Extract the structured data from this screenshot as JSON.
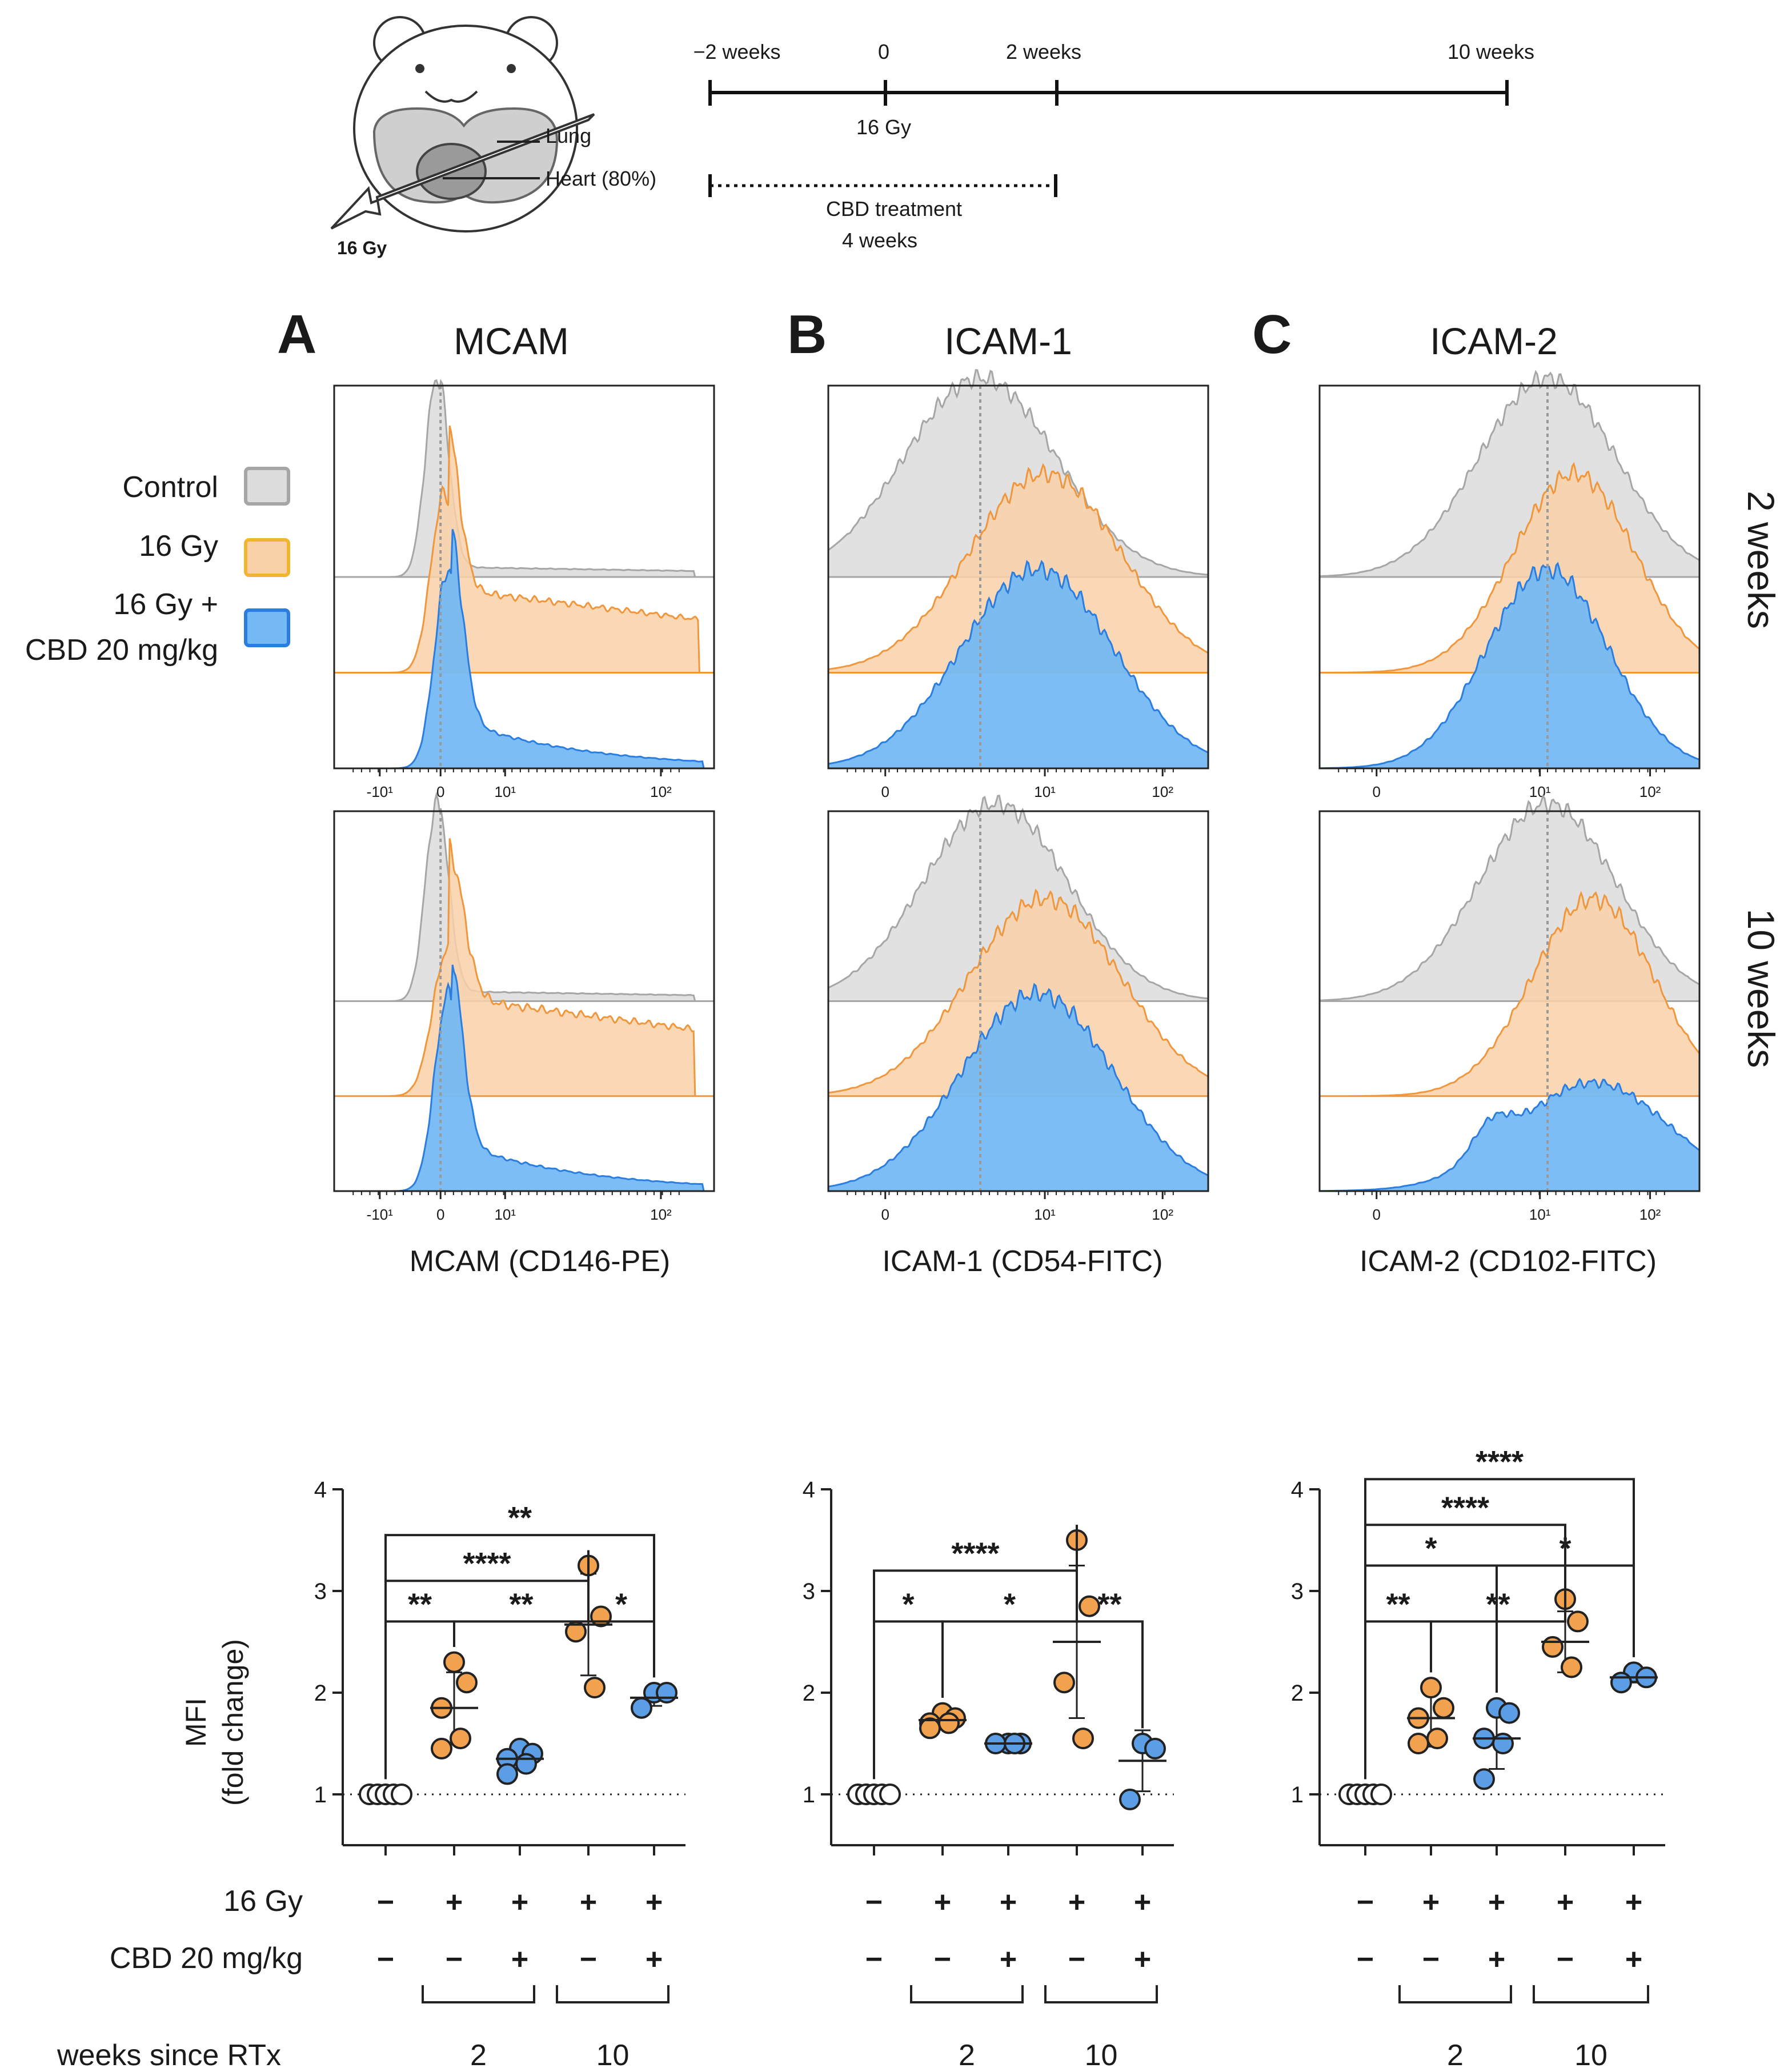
{
  "colors": {
    "control_fill": "#dcdcdc",
    "control_line": "#a6a6a6",
    "gy_fill": "#f9d1a8",
    "gy_line": "#f0963c",
    "cbd_fill": "#74b9f3",
    "cbd_line": "#2b7de0",
    "dot_orange": "#f2a24e",
    "dot_blue": "#5b9ee6"
  },
  "schematic": {
    "timeline_labels": [
      "−2 weeks",
      "0",
      "2 weeks",
      "10 weeks"
    ],
    "dose_label": "16 Gy",
    "treatment_label": "CBD treatment",
    "treatment_duration": "4 weeks",
    "lung_label": "Lung",
    "heart_label": "Heart  (80%)",
    "beam_label": "16 Gy"
  },
  "legend": {
    "items": [
      {
        "label": "Control",
        "key": "control"
      },
      {
        "label": "16 Gy",
        "key": "gy"
      },
      {
        "label_line1": "16 Gy +",
        "label_line2": "CBD 20 mg/kg",
        "key": "cbd"
      }
    ]
  },
  "row_labels": {
    "top": "2 weeks",
    "bottom": "10 weeks"
  },
  "conditions_table": {
    "row1_label": "16 Gy",
    "row2_label": "CBD 20 mg/kg",
    "row3_label": "weeks since RTx",
    "row1_signs": [
      "−",
      "+",
      "+",
      "+",
      "+"
    ],
    "row2_signs": [
      "−",
      "−",
      "+",
      "−",
      "+"
    ],
    "groups": [
      "2",
      "10"
    ]
  },
  "chart_data": [
    {
      "panel": "A",
      "type": "histogram",
      "title": "MCAM",
      "xlabel": "MCAM (CD146-PE)",
      "x_ticks": [
        "-10¹",
        "0",
        "10¹",
        "10²"
      ],
      "series": [
        "Control",
        "16 Gy",
        "16 Gy + CBD 20 mg/kg"
      ]
    },
    {
      "panel": "B",
      "type": "histogram",
      "title": "ICAM-1",
      "xlabel": "ICAM-1 (CD54-FITC)",
      "x_ticks": [
        "0",
        "10¹",
        "10²"
      ],
      "series": [
        "Control",
        "16 Gy",
        "16 Gy + CBD 20 mg/kg"
      ]
    },
    {
      "panel": "C",
      "type": "histogram",
      "title": "ICAM-2",
      "xlabel": "ICAM-2 (CD102-FITC)",
      "x_ticks": [
        "0",
        "10¹",
        "10²"
      ],
      "series": [
        "Control",
        "16 Gy",
        "16 Gy + CBD 20 mg/kg"
      ]
    },
    {
      "panel": "A",
      "type": "scatter",
      "ylabel_line1": "MFI",
      "ylabel_line2": "(fold change)",
      "ylim": [
        0.5,
        4
      ],
      "y_ticks": [
        "1",
        "2",
        "3",
        "4"
      ],
      "groups": [
        {
          "name": "Control",
          "mean": 1.0,
          "sd": 0.0,
          "values": [
            1,
            1,
            1,
            1,
            1
          ]
        },
        {
          "name": "16 Gy 2 wk",
          "mean": 1.85,
          "sd": 0.35,
          "values": [
            2.3,
            2.1,
            1.85,
            1.55,
            1.45
          ]
        },
        {
          "name": "16 Gy + CBD 2 wk",
          "mean": 1.35,
          "sd": 0.1,
          "values": [
            1.45,
            1.4,
            1.35,
            1.3,
            1.2
          ]
        },
        {
          "name": "16 Gy 10 wk",
          "mean": 2.67,
          "sd": 0.5,
          "values": [
            3.25,
            2.75,
            2.6,
            2.05
          ]
        },
        {
          "name": "16 Gy + CBD 10 wk",
          "mean": 1.95,
          "sd": 0.08,
          "values": [
            2.0,
            2.0,
            1.85
          ]
        }
      ],
      "comparisons": [
        {
          "a": 0,
          "b": 1,
          "label": "**",
          "y": 2.7
        },
        {
          "a": 1,
          "b": 3,
          "label": "**",
          "y": 2.7
        },
        {
          "a": 3,
          "b": 4,
          "label": "*",
          "y": 2.7
        },
        {
          "a": 0,
          "b": 3,
          "label": "****",
          "y": 3.1
        },
        {
          "a": 0,
          "b": 4,
          "label": "**",
          "y": 3.55
        }
      ]
    },
    {
      "panel": "B",
      "type": "scatter",
      "ylim": [
        0.5,
        4
      ],
      "y_ticks": [
        "1",
        "2",
        "3",
        "4"
      ],
      "groups": [
        {
          "name": "Control",
          "mean": 1.0,
          "sd": 0.0,
          "values": [
            1,
            1,
            1,
            1,
            1
          ]
        },
        {
          "name": "16 Gy 2 wk",
          "mean": 1.73,
          "sd": 0.06,
          "values": [
            1.8,
            1.75,
            1.7,
            1.7,
            1.65
          ]
        },
        {
          "name": "16 Gy + CBD 2 wk",
          "mean": 1.5,
          "sd": 0.03,
          "values": [
            1.5,
            1.5,
            1.5,
            1.5
          ]
        },
        {
          "name": "16 Gy 10 wk",
          "mean": 2.5,
          "sd": 0.75,
          "values": [
            3.5,
            2.85,
            2.1,
            1.55
          ]
        },
        {
          "name": "16 Gy + CBD 10 wk",
          "mean": 1.33,
          "sd": 0.3,
          "values": [
            1.5,
            1.45,
            0.95
          ]
        }
      ],
      "comparisons": [
        {
          "a": 0,
          "b": 1,
          "label": "*",
          "y": 2.7
        },
        {
          "a": 1,
          "b": 3,
          "label": "*",
          "y": 2.7
        },
        {
          "a": 3,
          "b": 4,
          "label": "**",
          "y": 2.7
        },
        {
          "a": 0,
          "b": 3,
          "label": "****",
          "y": 3.2
        }
      ]
    },
    {
      "panel": "C",
      "type": "scatter",
      "ylim": [
        0.5,
        4
      ],
      "y_ticks": [
        "1",
        "2",
        "3",
        "4"
      ],
      "groups": [
        {
          "name": "Control",
          "mean": 1.0,
          "sd": 0.0,
          "values": [
            1,
            1,
            1,
            1,
            1
          ]
        },
        {
          "name": "16 Gy 2 wk",
          "mean": 1.75,
          "sd": 0.28,
          "values": [
            2.05,
            1.85,
            1.75,
            1.55,
            1.5
          ]
        },
        {
          "name": "16 Gy + CBD 2 wk",
          "mean": 1.55,
          "sd": 0.3,
          "values": [
            1.85,
            1.8,
            1.55,
            1.5,
            1.15
          ]
        },
        {
          "name": "16 Gy 10 wk",
          "mean": 2.5,
          "sd": 0.3,
          "values": [
            2.92,
            2.7,
            2.45,
            2.25
          ]
        },
        {
          "name": "16 Gy + CBD 10 wk",
          "mean": 2.15,
          "sd": 0.05,
          "values": [
            2.2,
            2.15,
            2.1
          ]
        }
      ],
      "comparisons": [
        {
          "a": 0,
          "b": 1,
          "label": "**",
          "y": 2.7
        },
        {
          "a": 1,
          "b": 3,
          "label": "**",
          "y": 2.7
        },
        {
          "a": 0,
          "b": 2,
          "label": "*",
          "y": 3.25
        },
        {
          "a": 2,
          "b": 4,
          "label": "*",
          "y": 3.25
        },
        {
          "a": 0,
          "b": 3,
          "label": "****",
          "y": 3.65
        },
        {
          "a": 0,
          "b": 4,
          "label": "****",
          "y": 4.1
        }
      ]
    }
  ],
  "panel_letters": [
    "A",
    "B",
    "C"
  ]
}
